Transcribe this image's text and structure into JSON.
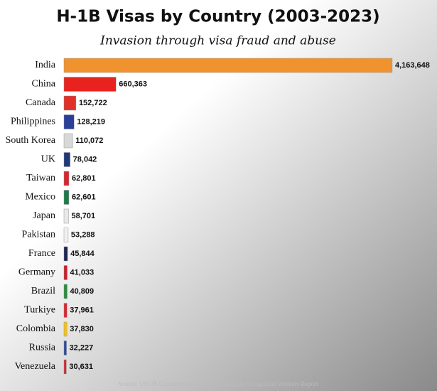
{
  "chart_data": {
    "type": "bar",
    "orientation": "horizontal",
    "title": "H-1B Visas by Country (2003-2023)",
    "subtitle": "Invasion through visa fraud and abuse",
    "source": "Source: USCIS Characteristics of H-1B Specialty Occupation Workers Report",
    "categories": [
      "India",
      "China",
      "Canada",
      "Philippines",
      "South Korea",
      "UK",
      "Taiwan",
      "Mexico",
      "Japan",
      "Pakistan",
      "France",
      "Germany",
      "Brazil",
      "Turkiye",
      "Colombia",
      "Russia",
      "Venezuela"
    ],
    "values": [
      4163648,
      660363,
      152722,
      128219,
      110072,
      78042,
      62801,
      62601,
      58701,
      53288,
      45844,
      41033,
      40809,
      37961,
      37830,
      32227,
      30631
    ],
    "value_labels": [
      "4,163,648",
      "660,363",
      "152,722",
      "128,219",
      "110,072",
      "78,042",
      "62,801",
      "62,601",
      "58,701",
      "53,288",
      "45,844",
      "41,033",
      "40,809",
      "37,961",
      "37,830",
      "32,227",
      "30,631"
    ],
    "colors": [
      "#f0922e",
      "#e8231f",
      "#e0302a",
      "#2a3f9a",
      "#d8d8d8",
      "#1f3a7a",
      "#d8262e",
      "#1f7a4a",
      "#e8e8e8",
      "#f0f0f0",
      "#1c2456",
      "#c8202a",
      "#2a8a3a",
      "#d8262e",
      "#f2c21a",
      "#2a4aa0",
      "#d8262e"
    ],
    "xlim": [
      0,
      4200000
    ]
  }
}
